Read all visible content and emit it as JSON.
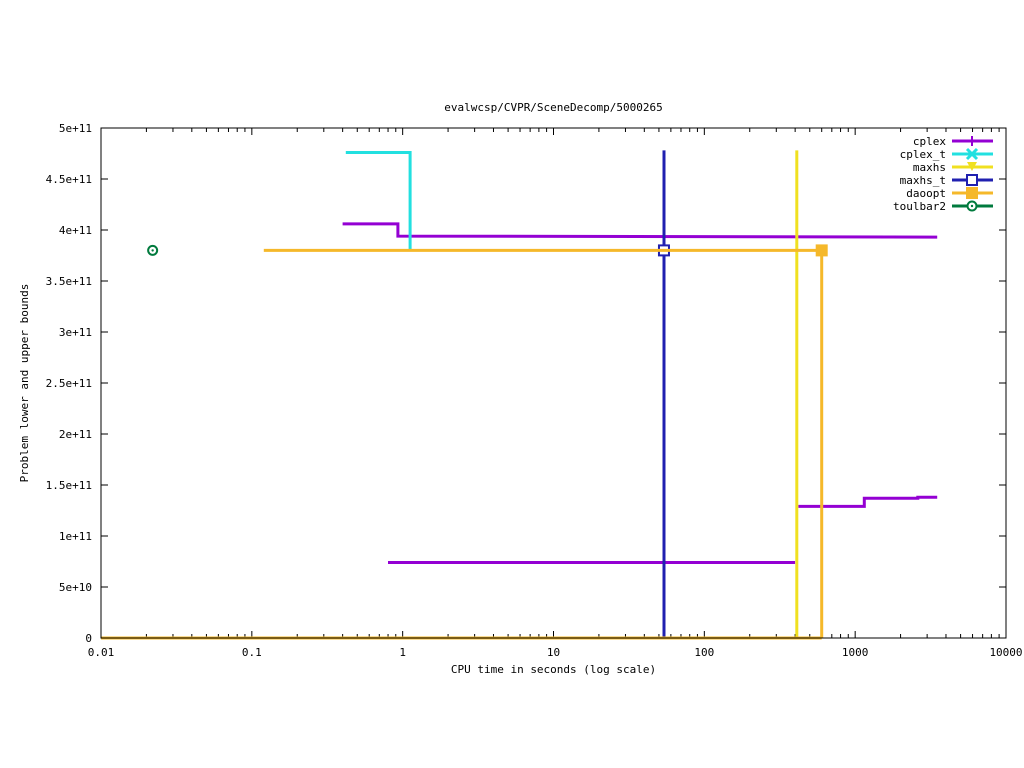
{
  "chart_data": {
    "type": "line",
    "title": "evalwcsp/CVPR/SceneDecomp/5000265",
    "xlabel": "CPU time in seconds (log scale)",
    "ylabel": "Problem lower and upper bounds",
    "xscale": "log",
    "xlim": [
      0.01,
      10000
    ],
    "ylim": [
      0,
      500000000000
    ],
    "x_ticks": [
      {
        "value": 0.01,
        "label": "0.01"
      },
      {
        "value": 0.1,
        "label": "0.1"
      },
      {
        "value": 1,
        "label": "1"
      },
      {
        "value": 10,
        "label": "10"
      },
      {
        "value": 100,
        "label": "100"
      },
      {
        "value": 1000,
        "label": "1000"
      },
      {
        "value": 10000,
        "label": "10000"
      }
    ],
    "y_ticks": [
      {
        "value": 0,
        "label": "0"
      },
      {
        "value": 50000000000,
        "label": "5e+10"
      },
      {
        "value": 100000000000,
        "label": "1e+11"
      },
      {
        "value": 150000000000,
        "label": "1.5e+11"
      },
      {
        "value": 200000000000,
        "label": "2e+11"
      },
      {
        "value": 250000000000,
        "label": "2.5e+11"
      },
      {
        "value": 300000000000,
        "label": "3e+11"
      },
      {
        "value": 350000000000,
        "label": "3.5e+11"
      },
      {
        "value": 400000000000,
        "label": "4e+11"
      },
      {
        "value": 450000000000,
        "label": "4.5e+11"
      },
      {
        "value": 500000000000,
        "label": "5e+11"
      }
    ],
    "grid": false,
    "legend_position": "top-right",
    "series": [
      {
        "name": "cplex",
        "color": "#9400d3",
        "marker": "plus",
        "segments": [
          [
            [
              0.4,
              406000000000
            ],
            [
              0.93,
              406000000000
            ],
            [
              0.93,
              394000000000
            ],
            [
              3500,
              393000000000
            ]
          ],
          [
            [
              0.8,
              74000000000
            ],
            [
              400,
              74000000000
            ]
          ],
          [
            [
              420,
              129000000000
            ],
            [
              1150,
              129000000000
            ],
            [
              1150,
              137000000000
            ],
            [
              2600,
              137000000000
            ],
            [
              2600,
              138000000000
            ],
            [
              3500,
              138000000000
            ]
          ]
        ],
        "markers": []
      },
      {
        "name": "cplex_t",
        "color": "#22e0e0",
        "marker": "cross",
        "segments": [
          [
            [
              0.42,
              476000000000
            ],
            [
              1.12,
              476000000000
            ],
            [
              1.12,
              380000000000
            ]
          ]
        ],
        "markers": []
      },
      {
        "name": "maxhs",
        "color": "#f0e020",
        "marker": "triangle",
        "segments": [
          [
            [
              410,
              0
            ],
            [
              410,
              478000000000
            ]
          ]
        ],
        "markers": []
      },
      {
        "name": "maxhs_t",
        "color": "#2020b0",
        "marker": "open-square",
        "segments": [
          [
            [
              54,
              0
            ],
            [
              54,
              478000000000
            ]
          ]
        ],
        "markers": [
          [
            54,
            380000000000
          ]
        ]
      },
      {
        "name": "daoopt",
        "color": "#f5b82a",
        "marker": "filled-square",
        "segments": [
          [
            [
              0.12,
              380000000000
            ],
            [
              600,
              380000000000
            ]
          ],
          [
            [
              0.01,
              0
            ],
            [
              600,
              0
            ]
          ],
          [
            [
              600,
              0
            ],
            [
              600,
              380000000000
            ]
          ]
        ],
        "markers": [
          [
            600,
            380000000000
          ]
        ]
      },
      {
        "name": "toulbar2",
        "color": "#007a3d",
        "marker": "circle-dot",
        "segments": [],
        "markers": [
          [
            0.022,
            380000000000
          ]
        ]
      }
    ]
  }
}
